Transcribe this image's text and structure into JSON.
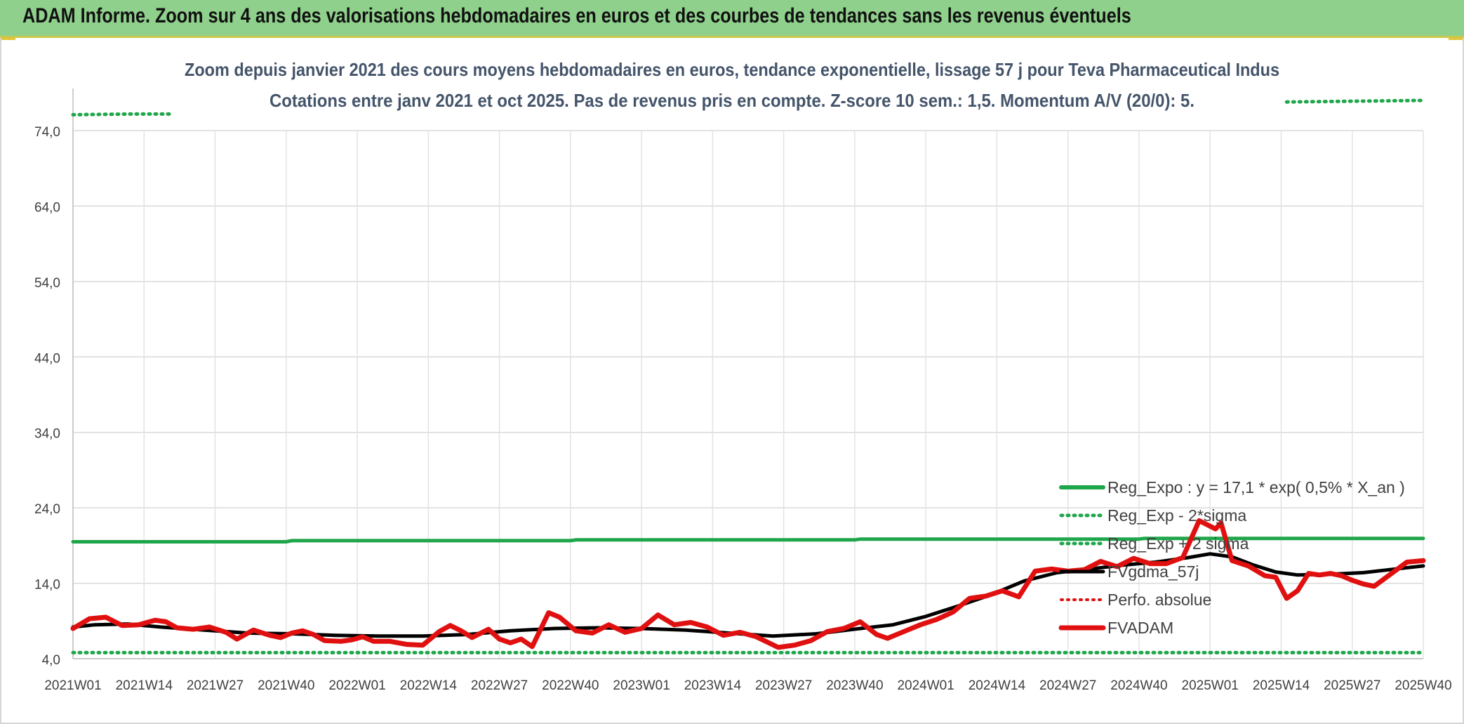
{
  "banner": {
    "title": "ADAM Informe. Zoom sur 4 ans des valorisations hebdomadaires en euros et des courbes de tendances sans les revenus éventuels"
  },
  "chart_data": {
    "type": "line",
    "title": "Zoom depuis janvier 2021 des cours moyens hebdomadaires en euros, tendance exponentielle, lissage 57 j pour Teva Pharmaceutical Indus",
    "subtitle": "Cotations entre janv 2021 et oct 2025. Pas de revenus pris en compte. Z-score 10 sem.: 1,5. Momentum A/V (20/0): 5.",
    "xlabel": "",
    "ylabel": "",
    "ylim": [
      4,
      78
    ],
    "y_ticks": [
      "4,0",
      "14,0",
      "24,0",
      "34,0",
      "44,0",
      "54,0",
      "64,0",
      "74,0"
    ],
    "y_tick_values": [
      4,
      14,
      24,
      34,
      44,
      54,
      64,
      74
    ],
    "x_ticks": [
      "2021W01",
      "2021W14",
      "2021W27",
      "2021W40",
      "2022W01",
      "2022W14",
      "2022W27",
      "2022W40",
      "2023W01",
      "2023W14",
      "2023W27",
      "2023W40",
      "2024W01",
      "2024W14",
      "2024W27",
      "2024W40",
      "2025W01",
      "2025W14",
      "2025W27",
      "2025W40"
    ],
    "x_tick_index": [
      0,
      13,
      26,
      39,
      52,
      65,
      78,
      91,
      104,
      117,
      130,
      143,
      156,
      169,
      182,
      195,
      208,
      221,
      234,
      247
    ],
    "x_count": 248,
    "grid": true,
    "legend_position": "bottom-right",
    "legend": [
      {
        "label": "Reg_Expo : y = 17,1 * exp( 0,5% *  X_an )",
        "color": "#1fa64a",
        "style": "solid",
        "width": 6
      },
      {
        "label": "Reg_Exp - 2*sigma",
        "color": "#1fa64a",
        "style": "dotted",
        "width": 5
      },
      {
        "label": "Reg_Exp + 2 sigma",
        "color": "#1fa64a",
        "style": "dotted",
        "width": 5
      },
      {
        "label": "FVgdma_57j",
        "color": "#000000",
        "style": "solid",
        "width": 5
      },
      {
        "label": "Perfo. absolue",
        "color": "#e01010",
        "style": "dotted",
        "width": 4
      },
      {
        "label": "FVADAM",
        "color": "#e01010",
        "style": "solid",
        "width": 7
      }
    ],
    "series": [
      {
        "name": "Reg_Expo : y = 17,1 * exp( 0,5% *  X_an )",
        "color": "#1fa64a",
        "style": "solid",
        "points": [
          [
            0,
            19.5
          ],
          [
            39,
            19.5
          ],
          [
            40,
            19.65
          ],
          [
            91,
            19.65
          ],
          [
            92,
            19.75
          ],
          [
            143,
            19.75
          ],
          [
            144,
            19.85
          ],
          [
            195,
            19.85
          ],
          [
            196,
            19.95
          ],
          [
            247,
            19.95
          ]
        ]
      },
      {
        "name": "Reg_Exp - 2*sigma",
        "color": "#1fa64a",
        "style": "dotted",
        "points": [
          [
            0,
            4.8
          ],
          [
            247,
            4.8
          ]
        ]
      },
      {
        "name": "Reg_Exp + 2 sigma",
        "color": "#1fa64a",
        "style": "dotted",
        "segments": [
          [
            [
              0,
              76.1
            ],
            [
              10,
              76.2
            ],
            [
              18,
              76.2
            ]
          ],
          [
            [
              222,
              77.8
            ],
            [
              247,
              78.0
            ]
          ]
        ]
      },
      {
        "name": "FVgdma_57j",
        "color": "#000000",
        "style": "solid",
        "points": [
          [
            0,
            8.2
          ],
          [
            4,
            8.5
          ],
          [
            10,
            8.6
          ],
          [
            16,
            8.2
          ],
          [
            24,
            7.8
          ],
          [
            32,
            7.4
          ],
          [
            40,
            7.3
          ],
          [
            48,
            7.1
          ],
          [
            56,
            7.0
          ],
          [
            64,
            7.0
          ],
          [
            72,
            7.2
          ],
          [
            80,
            7.7
          ],
          [
            88,
            8.0
          ],
          [
            96,
            8.1
          ],
          [
            104,
            8.0
          ],
          [
            112,
            7.8
          ],
          [
            120,
            7.4
          ],
          [
            128,
            7.0
          ],
          [
            136,
            7.3
          ],
          [
            144,
            8.0
          ],
          [
            150,
            8.5
          ],
          [
            156,
            9.6
          ],
          [
            162,
            11.0
          ],
          [
            168,
            12.5
          ],
          [
            174,
            14.3
          ],
          [
            180,
            15.4
          ],
          [
            186,
            15.9
          ],
          [
            192,
            16.4
          ],
          [
            198,
            16.8
          ],
          [
            204,
            17.4
          ],
          [
            208,
            17.9
          ],
          [
            212,
            17.5
          ],
          [
            216,
            16.4
          ],
          [
            220,
            15.5
          ],
          [
            224,
            15.1
          ],
          [
            230,
            15.2
          ],
          [
            236,
            15.4
          ],
          [
            242,
            15.9
          ],
          [
            247,
            16.3
          ]
        ]
      },
      {
        "name": "FVADAM",
        "color": "#e01010",
        "style": "solid",
        "points": [
          [
            0,
            8.0
          ],
          [
            3,
            9.3
          ],
          [
            6,
            9.5
          ],
          [
            9,
            8.4
          ],
          [
            12,
            8.5
          ],
          [
            15,
            9.1
          ],
          [
            17,
            8.9
          ],
          [
            19,
            8.1
          ],
          [
            22,
            7.9
          ],
          [
            25,
            8.2
          ],
          [
            28,
            7.5
          ],
          [
            30,
            6.6
          ],
          [
            33,
            7.8
          ],
          [
            36,
            7.1
          ],
          [
            38,
            6.8
          ],
          [
            40,
            7.4
          ],
          [
            42,
            7.7
          ],
          [
            44,
            7.2
          ],
          [
            46,
            6.4
          ],
          [
            49,
            6.3
          ],
          [
            51,
            6.5
          ],
          [
            53,
            6.9
          ],
          [
            55,
            6.3
          ],
          [
            58,
            6.3
          ],
          [
            61,
            5.9
          ],
          [
            64,
            5.8
          ],
          [
            67,
            7.6
          ],
          [
            69,
            8.4
          ],
          [
            71,
            7.7
          ],
          [
            73,
            6.8
          ],
          [
            76,
            7.9
          ],
          [
            78,
            6.6
          ],
          [
            80,
            6.1
          ],
          [
            82,
            6.6
          ],
          [
            84,
            5.6
          ],
          [
            87,
            10.1
          ],
          [
            89,
            9.5
          ],
          [
            92,
            7.7
          ],
          [
            95,
            7.4
          ],
          [
            98,
            8.5
          ],
          [
            101,
            7.5
          ],
          [
            104,
            8.0
          ],
          [
            107,
            9.8
          ],
          [
            110,
            8.5
          ],
          [
            113,
            8.8
          ],
          [
            116,
            8.2
          ],
          [
            119,
            7.1
          ],
          [
            122,
            7.5
          ],
          [
            125,
            6.9
          ],
          [
            127,
            6.2
          ],
          [
            129,
            5.5
          ],
          [
            132,
            5.8
          ],
          [
            135,
            6.4
          ],
          [
            138,
            7.6
          ],
          [
            141,
            8.0
          ],
          [
            144,
            8.9
          ],
          [
            147,
            7.2
          ],
          [
            149,
            6.7
          ],
          [
            152,
            7.6
          ],
          [
            155,
            8.5
          ],
          [
            158,
            9.2
          ],
          [
            161,
            10.2
          ],
          [
            164,
            12.0
          ],
          [
            167,
            12.3
          ],
          [
            170,
            13.0
          ],
          [
            173,
            12.2
          ],
          [
            176,
            15.6
          ],
          [
            179,
            15.9
          ],
          [
            182,
            15.6
          ],
          [
            185,
            15.8
          ],
          [
            188,
            16.9
          ],
          [
            191,
            16.2
          ],
          [
            194,
            17.3
          ],
          [
            197,
            16.6
          ],
          [
            200,
            16.6
          ],
          [
            203,
            17.4
          ],
          [
            206,
            22.3
          ],
          [
            209,
            21.2
          ],
          [
            210,
            22.0
          ],
          [
            212,
            17.0
          ],
          [
            215,
            16.3
          ],
          [
            218,
            15.0
          ],
          [
            220,
            14.8
          ],
          [
            222,
            12.0
          ],
          [
            224,
            13.0
          ],
          [
            226,
            15.3
          ],
          [
            228,
            15.1
          ],
          [
            230,
            15.3
          ],
          [
            232,
            15.0
          ],
          [
            234,
            14.4
          ],
          [
            236,
            13.9
          ],
          [
            238,
            13.6
          ],
          [
            241,
            15.2
          ],
          [
            244,
            16.8
          ],
          [
            247,
            17.0
          ]
        ]
      }
    ]
  }
}
